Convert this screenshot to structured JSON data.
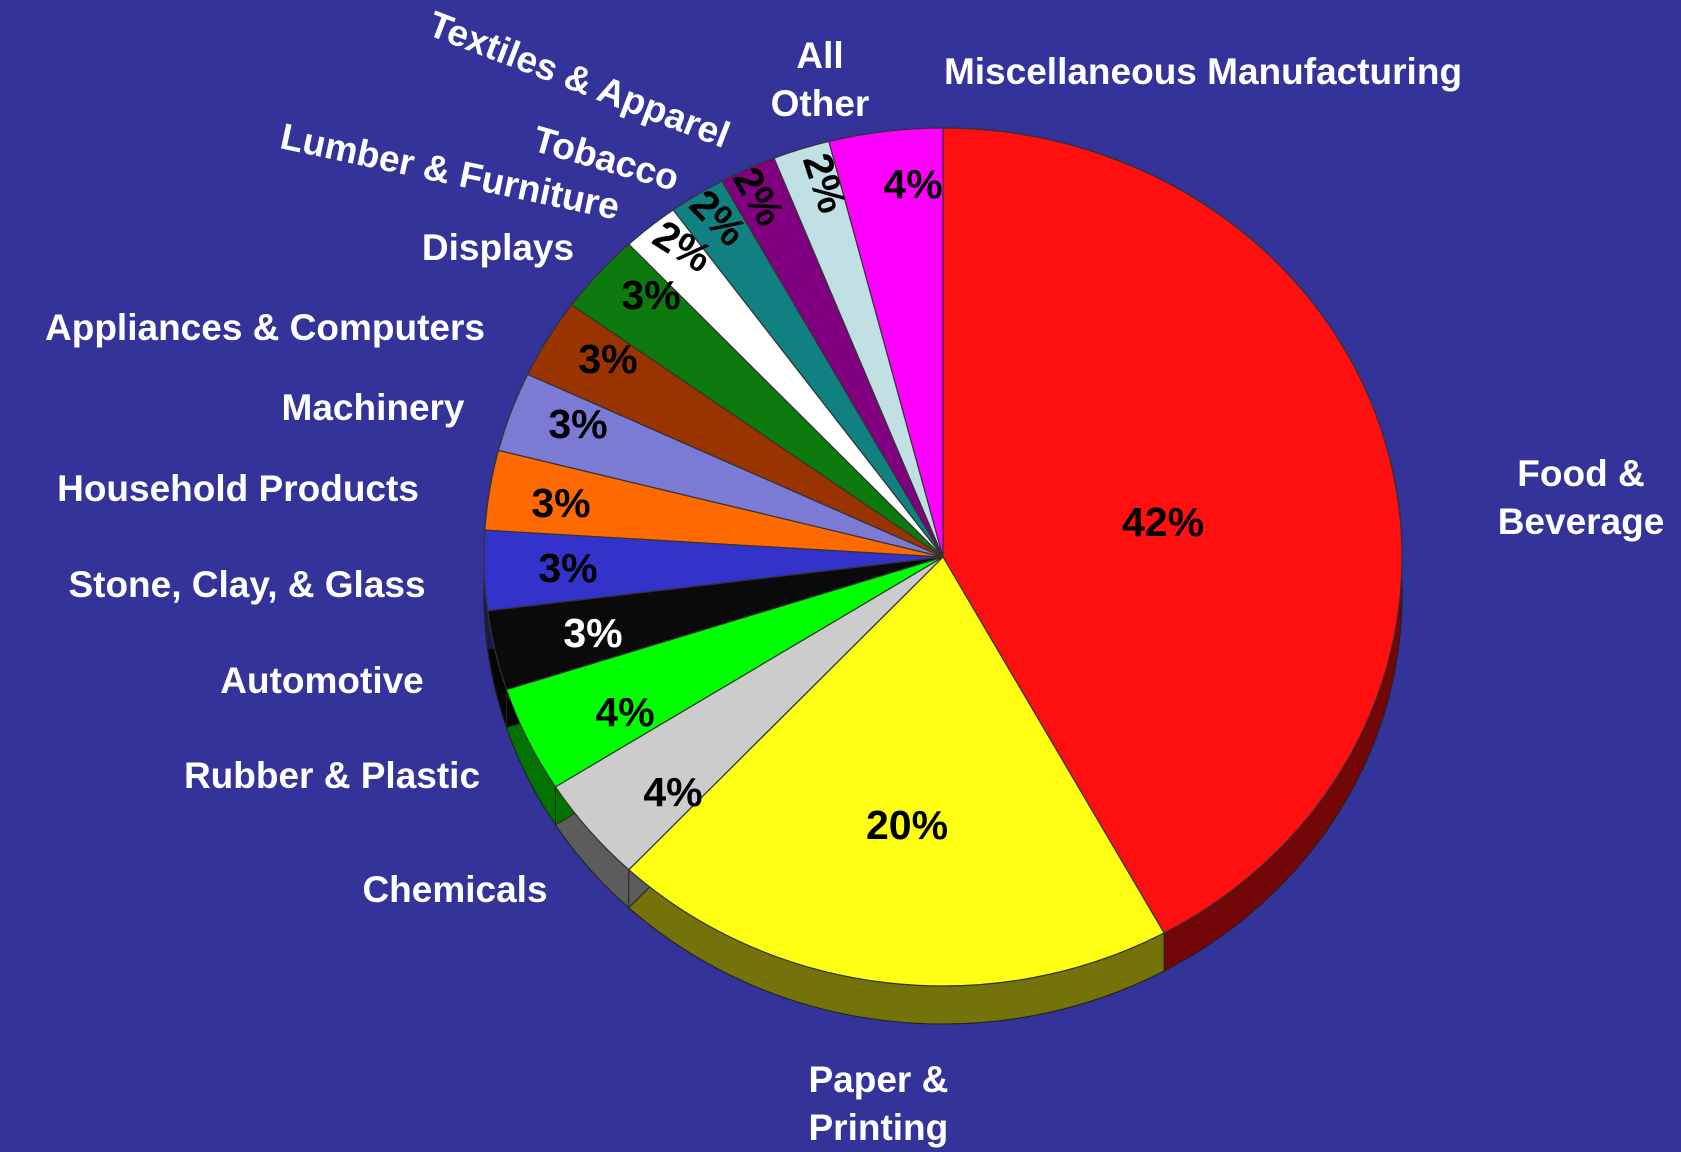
{
  "chart_data": {
    "type": "pie",
    "categories": [
      "Food & Beverage",
      "Paper & Printing",
      "Chemicals",
      "Rubber & Plastic",
      "Automotive",
      "Stone, Clay,  & Glass",
      "Household Products",
      "Machinery",
      "Appliances & Computers",
      "Displays",
      "Lumber & Furniture",
      "Tobacco",
      "Textiles & Apparel",
      "All Other",
      "Miscellaneous  Manufacturing"
    ],
    "values": [
      42,
      20,
      4,
      4,
      3,
      3,
      3,
      3,
      3,
      3,
      2,
      2,
      2,
      2,
      4
    ],
    "value_labels": [
      "42%",
      "20%",
      "4%",
      "4%",
      "3%",
      "3%",
      "3%",
      "3%",
      "3%",
      "3%",
      "2%",
      "2%",
      "2%",
      "2%",
      "4%"
    ],
    "colors": [
      "#ff0f0f",
      "#ffff14",
      "#cccccc",
      "#00ff00",
      "#0a0a0a",
      "#3333cc",
      "#ff6a00",
      "#7b7bd6",
      "#993300",
      "#0d7a0d",
      "#ffffff",
      "#118080",
      "#800080",
      "#c0e0e4",
      "#ff00ff"
    ]
  }
}
